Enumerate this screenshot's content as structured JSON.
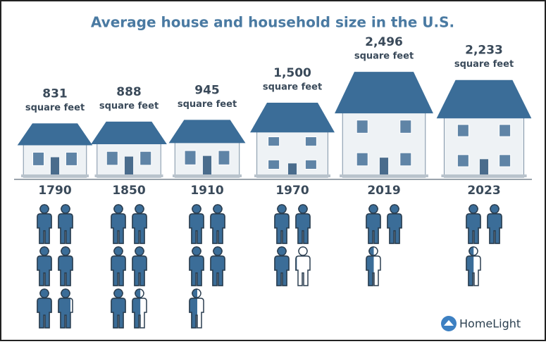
{
  "chart_data": {
    "type": "pictograph",
    "title": "Average house and household size in the U.S.",
    "categories": [
      "1790",
      "1850",
      "1910",
      "1970",
      "2019",
      "2023"
    ],
    "house_size": [
      831,
      888,
      945,
      1500,
      2496,
      2233
    ],
    "value_labels": [
      "831",
      "888",
      "945",
      "1,500",
      "2,496",
      "2,233"
    ],
    "unit": "square feet",
    "household_size": [
      5.79,
      5.55,
      4.54,
      3.14,
      2.52,
      2.51
    ],
    "color": "#3b6d98"
  },
  "brand": "HomeLight"
}
